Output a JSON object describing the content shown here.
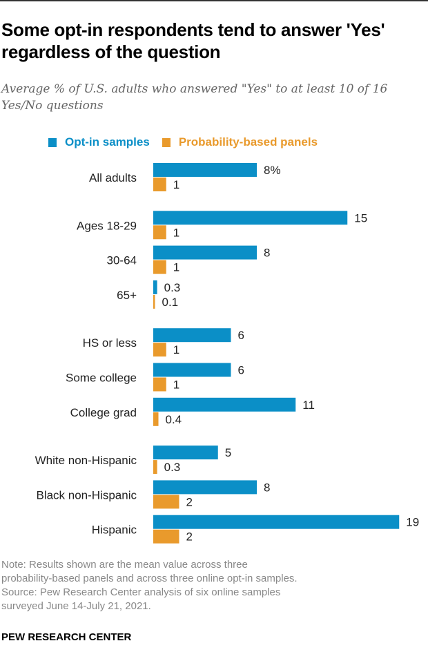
{
  "chart_data": {
    "type": "bar",
    "orientation": "horizontal",
    "title": "Some opt-in respondents tend to answer 'Yes' regardless of the question",
    "subtitle": "Average % of U.S. adults who answered \"Yes\" to at least 10 of 16 Yes/No questions",
    "categories": [
      "All adults",
      "Ages 18-29",
      "30-64",
      "65+",
      "HS or less",
      "Some college",
      "College grad",
      "White non-Hispanic",
      "Black non-Hispanic",
      "Hispanic"
    ],
    "groups": [
      [
        0
      ],
      [
        1,
        2,
        3
      ],
      [
        4,
        5,
        6
      ],
      [
        7,
        8,
        9
      ]
    ],
    "series": [
      {
        "name": "Opt-in samples",
        "color": "#0b8fc7",
        "values": [
          8,
          15,
          8,
          0.3,
          6,
          6,
          11,
          5,
          8,
          19
        ],
        "labels": [
          "8%",
          "15",
          "8",
          "0.3",
          "6",
          "6",
          "11",
          "5",
          "8",
          "19"
        ]
      },
      {
        "name": "Probability-based panels",
        "color": "#e99a2c",
        "values": [
          1,
          1,
          1,
          0.1,
          1,
          1,
          0.4,
          0.3,
          2,
          2
        ],
        "labels": [
          "1",
          "1",
          "1",
          "0.1",
          "1",
          "1",
          "0.4",
          "0.3",
          "2",
          "2"
        ]
      }
    ],
    "xlim": [
      0,
      19
    ],
    "grid": false,
    "legend_position": "top"
  },
  "notes": [
    "Note: Results shown are the mean value across three",
    "probability-based panels and across three online opt-in samples.",
    "Source: Pew Research Center analysis of six online samples",
    "surveyed June 14-July 21, 2021."
  ],
  "footer": "PEW RESEARCH CENTER"
}
